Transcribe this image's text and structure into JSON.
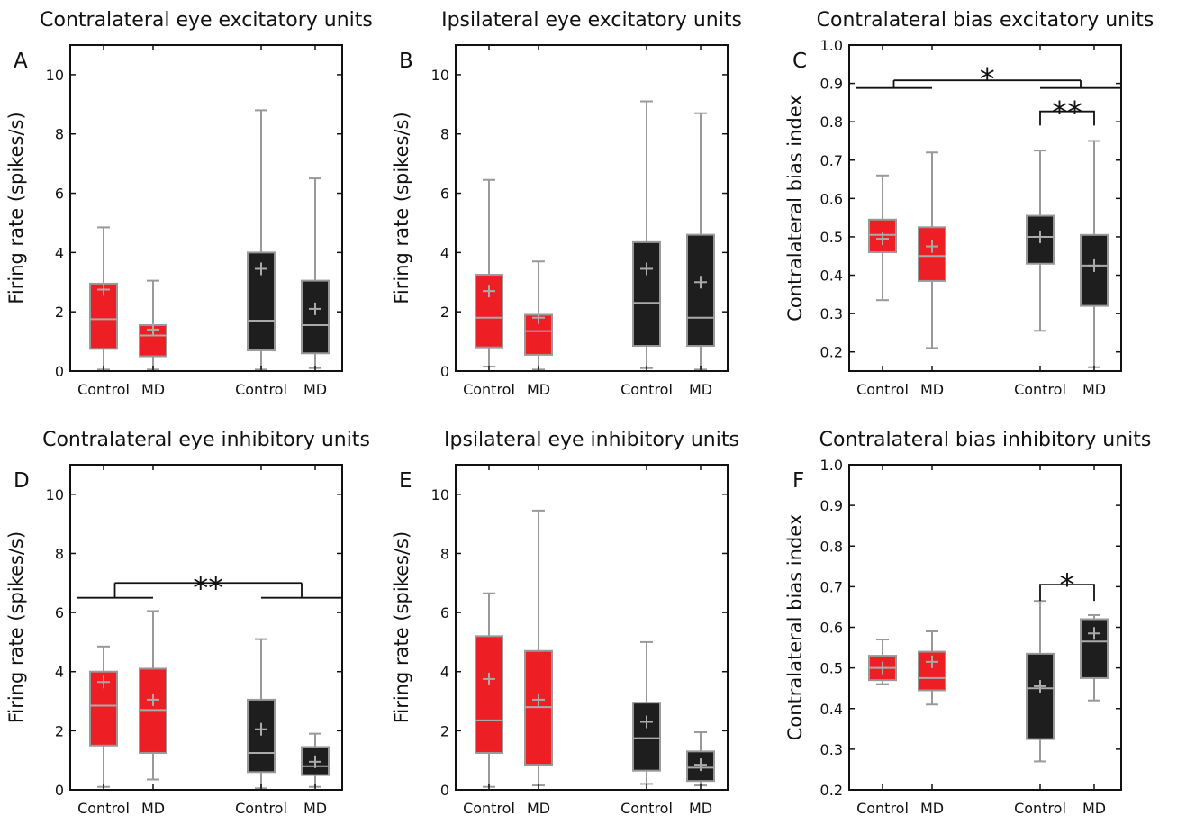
{
  "colors": {
    "control": "#ee1f24",
    "md": "#1e1e1e",
    "whisker": "#999999",
    "median": "#aaaaaa",
    "axis": "#111111"
  },
  "chart_data": [
    {
      "type": "box",
      "letter": "A",
      "title": "Contralateral eye excitatory units",
      "ylabel": "Firing rate (spikes/s)",
      "ylim": [
        0,
        11
      ],
      "yticks": [
        0,
        2,
        4,
        6,
        8,
        10
      ],
      "yticklabels": [
        "0",
        "2",
        "4",
        "6",
        "8",
        "10"
      ],
      "groups": [
        {
          "label": "Control",
          "color": "control",
          "stats": {
            "whislo": 0.05,
            "q1": 0.75,
            "med": 1.75,
            "q3": 2.95,
            "whishi": 4.85,
            "mean": 2.75
          }
        },
        {
          "label": "MD",
          "color": "control",
          "stats": {
            "whislo": 0.05,
            "q1": 0.5,
            "med": 1.2,
            "q3": 1.55,
            "whishi": 3.05,
            "mean": 1.4
          }
        },
        {
          "label": "Control",
          "color": "md",
          "stats": {
            "whislo": 0.05,
            "q1": 0.7,
            "med": 1.7,
            "q3": 4.0,
            "whishi": 8.8,
            "mean": 3.45
          }
        },
        {
          "label": "MD",
          "color": "md",
          "stats": {
            "whislo": 0.1,
            "q1": 0.6,
            "med": 1.55,
            "q3": 3.05,
            "whishi": 6.5,
            "mean": 2.1
          }
        }
      ],
      "annotations": []
    },
    {
      "type": "box",
      "letter": "B",
      "title": "Ipsilateral eye excitatory units",
      "ylabel": "Firing rate (spikes/s)",
      "ylim": [
        0,
        11
      ],
      "yticks": [
        0,
        2,
        4,
        6,
        8,
        10
      ],
      "yticklabels": [
        "0",
        "2",
        "4",
        "6",
        "8",
        "10"
      ],
      "groups": [
        {
          "label": "Control",
          "color": "control",
          "stats": {
            "whislo": 0.15,
            "q1": 0.8,
            "med": 1.8,
            "q3": 3.25,
            "whishi": 6.45,
            "mean": 2.7
          }
        },
        {
          "label": "MD",
          "color": "control",
          "stats": {
            "whislo": 0.05,
            "q1": 0.55,
            "med": 1.35,
            "q3": 1.9,
            "whishi": 3.7,
            "mean": 1.8
          }
        },
        {
          "label": "Control",
          "color": "md",
          "stats": {
            "whislo": 0.1,
            "q1": 0.85,
            "med": 2.3,
            "q3": 4.35,
            "whishi": 9.1,
            "mean": 3.45
          }
        },
        {
          "label": "MD",
          "color": "md",
          "stats": {
            "whislo": 0.05,
            "q1": 0.85,
            "med": 1.8,
            "q3": 4.6,
            "whishi": 8.7,
            "mean": 3.0
          }
        }
      ],
      "annotations": []
    },
    {
      "type": "box",
      "letter": "C",
      "title": "Contralateral bias excitatory units",
      "ylabel": "Contralateral bias index",
      "ylim": [
        0.15,
        1.0
      ],
      "yticks": [
        0.2,
        0.3,
        0.4,
        0.5,
        0.6,
        0.7,
        0.8,
        0.9,
        1.0
      ],
      "yticklabels": [
        "0.2",
        "0.3",
        "0.4",
        "0.5",
        "0.6",
        "0.7",
        "0.8",
        "0.9",
        "1.0"
      ],
      "groups": [
        {
          "label": "Control",
          "color": "control",
          "stats": {
            "whislo": 0.335,
            "q1": 0.46,
            "med": 0.505,
            "q3": 0.545,
            "whishi": 0.66,
            "mean": 0.495
          }
        },
        {
          "label": "MD",
          "color": "control",
          "stats": {
            "whislo": 0.21,
            "q1": 0.385,
            "med": 0.45,
            "q3": 0.525,
            "whishi": 0.72,
            "mean": 0.475
          }
        },
        {
          "label": "Control",
          "color": "md",
          "stats": {
            "whislo": 0.255,
            "q1": 0.43,
            "med": 0.5,
            "q3": 0.555,
            "whishi": 0.725,
            "mean": 0.5
          }
        },
        {
          "label": "MD",
          "color": "md",
          "stats": {
            "whislo": 0.16,
            "q1": 0.32,
            "med": 0.425,
            "q3": 0.505,
            "whishi": 0.75,
            "mean": 0.425
          }
        }
      ],
      "annotations": [
        {
          "kind": "nested",
          "text": "*",
          "leftGroup": [
            0,
            1
          ],
          "rightGroup": [
            2,
            3
          ],
          "armY": 0.888,
          "topY": 0.908,
          "textY": 0.935
        },
        {
          "kind": "simple",
          "text": "**",
          "from": 2,
          "to": 3,
          "barY": 0.827,
          "dropY": 0.79,
          "textY": 0.83
        }
      ]
    },
    {
      "type": "box",
      "letter": "D",
      "title": "Contralateral eye inhibitory units",
      "ylabel": "Firing rate (spikes/s)",
      "ylim": [
        0,
        11
      ],
      "yticks": [
        0,
        2,
        4,
        6,
        8,
        10
      ],
      "yticklabels": [
        "0",
        "2",
        "4",
        "6",
        "8",
        "10"
      ],
      "groups": [
        {
          "label": "Control",
          "color": "control",
          "stats": {
            "whislo": 0.1,
            "q1": 1.5,
            "med": 2.85,
            "q3": 4.0,
            "whishi": 4.85,
            "mean": 3.65
          }
        },
        {
          "label": "MD",
          "color": "control",
          "stats": {
            "whislo": 0.35,
            "q1": 1.25,
            "med": 2.7,
            "q3": 4.1,
            "whishi": 6.05,
            "mean": 3.05
          }
        },
        {
          "label": "Control",
          "color": "md",
          "stats": {
            "whislo": 0.05,
            "q1": 0.6,
            "med": 1.25,
            "q3": 3.05,
            "whishi": 5.1,
            "mean": 2.05
          }
        },
        {
          "label": "MD",
          "color": "md",
          "stats": {
            "whislo": 0.1,
            "q1": 0.5,
            "med": 0.8,
            "q3": 1.45,
            "whishi": 1.9,
            "mean": 0.95
          }
        }
      ],
      "annotations": [
        {
          "kind": "nested",
          "text": "**",
          "leftGroup": [
            0,
            1
          ],
          "rightGroup": [
            2,
            3
          ],
          "armY": 6.5,
          "topY": 7.0,
          "textY": 7.15
        }
      ]
    },
    {
      "type": "box",
      "letter": "E",
      "title": "Ipsilateral eye inhibitory units",
      "ylabel": "Firing rate (spikes/s)",
      "ylim": [
        0,
        11
      ],
      "yticks": [
        0,
        2,
        4,
        6,
        8,
        10
      ],
      "yticklabels": [
        "0",
        "2",
        "4",
        "6",
        "8",
        "10"
      ],
      "groups": [
        {
          "label": "Control",
          "color": "control",
          "stats": {
            "whislo": 0.1,
            "q1": 1.25,
            "med": 2.35,
            "q3": 5.2,
            "whishi": 6.65,
            "mean": 3.75
          }
        },
        {
          "label": "MD",
          "color": "control",
          "stats": {
            "whislo": 0.15,
            "q1": 0.85,
            "med": 2.8,
            "q3": 4.7,
            "whishi": 9.45,
            "mean": 3.05
          }
        },
        {
          "label": "Control",
          "color": "md",
          "stats": {
            "whislo": 0.2,
            "q1": 0.65,
            "med": 1.75,
            "q3": 2.95,
            "whishi": 5.0,
            "mean": 2.3
          }
        },
        {
          "label": "MD",
          "color": "md",
          "stats": {
            "whislo": 0.15,
            "q1": 0.3,
            "med": 0.75,
            "q3": 1.3,
            "whishi": 1.95,
            "mean": 0.85
          }
        }
      ],
      "annotations": []
    },
    {
      "type": "box",
      "letter": "F",
      "title": "Contralateral bias inhibitory units",
      "ylabel": "Contralateral bias index",
      "ylim": [
        0.2,
        1.0
      ],
      "yticks": [
        0.2,
        0.3,
        0.4,
        0.5,
        0.6,
        0.7,
        0.8,
        0.9,
        1.0
      ],
      "yticklabels": [
        "0.2",
        "0.3",
        "0.4",
        "0.5",
        "0.6",
        "0.7",
        "0.8",
        "0.9",
        "1.0"
      ],
      "groups": [
        {
          "label": "Control",
          "color": "control",
          "stats": {
            "whislo": 0.46,
            "q1": 0.47,
            "med": 0.5,
            "q3": 0.53,
            "whishi": 0.57,
            "mean": 0.5
          }
        },
        {
          "label": "MD",
          "color": "control",
          "stats": {
            "whislo": 0.41,
            "q1": 0.445,
            "med": 0.475,
            "q3": 0.54,
            "whishi": 0.59,
            "mean": 0.515
          }
        },
        {
          "label": "Control",
          "color": "md",
          "stats": {
            "whislo": 0.27,
            "q1": 0.325,
            "med": 0.45,
            "q3": 0.535,
            "whishi": 0.665,
            "mean": 0.455
          }
        },
        {
          "label": "MD",
          "color": "md",
          "stats": {
            "whislo": 0.42,
            "q1": 0.475,
            "med": 0.565,
            "q3": 0.62,
            "whishi": 0.63,
            "mean": 0.585
          }
        }
      ],
      "annotations": [
        {
          "kind": "simple",
          "text": "*",
          "from": 2,
          "to": 3,
          "barY": 0.705,
          "dropY": 0.665,
          "textY": 0.71
        }
      ]
    }
  ]
}
